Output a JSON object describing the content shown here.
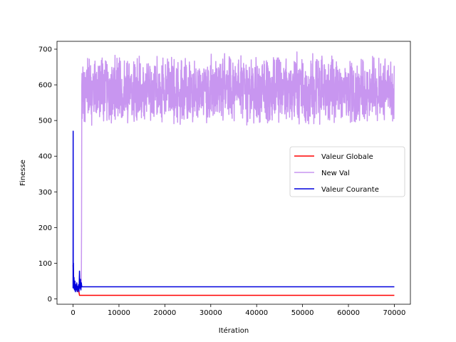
{
  "chart_data": {
    "type": "line",
    "title": "",
    "xlabel": "Itération",
    "ylabel": "Finesse",
    "xlim": [
      -3500,
      73500
    ],
    "ylim": [
      -15,
      722
    ],
    "xticks": [
      0,
      10000,
      20000,
      30000,
      40000,
      50000,
      60000,
      70000
    ],
    "yticks": [
      0,
      100,
      200,
      300,
      400,
      500,
      600,
      700
    ],
    "grid": false,
    "legend_position": "center-right",
    "series": [
      {
        "name": "Valeur Globale",
        "color": "#ff0000",
        "x": [
          0,
          150,
          300,
          500,
          800,
          1100,
          1300,
          1400,
          70000
        ],
        "y": [
          95,
          55,
          40,
          35,
          28,
          22,
          18,
          10,
          10
        ]
      },
      {
        "name": "New Val",
        "color": "#c896f0",
        "noise_band": {
          "x_start": 1800,
          "x_end": 70000,
          "center": 585,
          "low": 483,
          "high": 694
        },
        "x": [
          1800,
          1850,
          1900,
          70000
        ],
        "y": [
          30,
          200,
          550,
          585
        ]
      },
      {
        "name": "Valeur Courante",
        "color": "#0000dd",
        "x": [
          0,
          20,
          40,
          80,
          120,
          200,
          300,
          400,
          500,
          600,
          700,
          800,
          900,
          1000,
          1100,
          1200,
          1300,
          1400,
          1500,
          1600,
          1700,
          1800,
          1900,
          70000
        ],
        "y": [
          30,
          470,
          60,
          100,
          30,
          60,
          25,
          50,
          20,
          40,
          25,
          45,
          20,
          35,
          25,
          40,
          20,
          78,
          30,
          55,
          25,
          45,
          34,
          34
        ]
      }
    ]
  }
}
